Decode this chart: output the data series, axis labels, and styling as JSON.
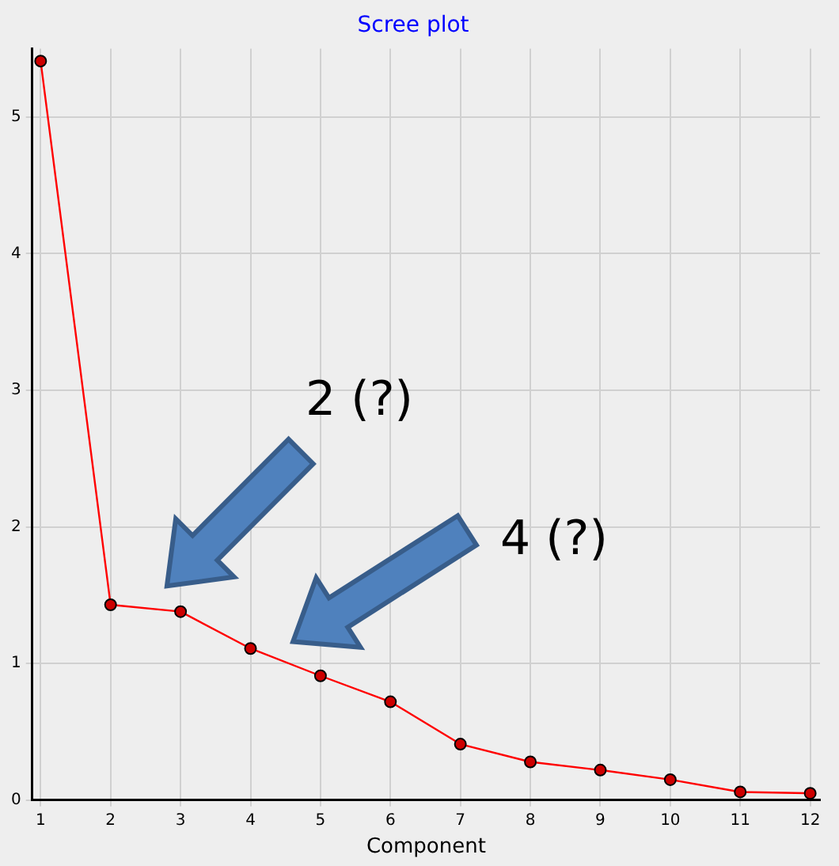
{
  "chart_data": {
    "type": "line",
    "title": "Scree plot",
    "xlabel": "Component",
    "x": [
      1,
      2,
      3,
      4,
      5,
      6,
      7,
      8,
      9,
      10,
      11,
      12
    ],
    "series": [
      {
        "color": "#ff0000",
        "values": [
          5.41,
          1.43,
          1.38,
          1.11,
          0.91,
          0.72,
          0.41,
          0.28,
          0.22,
          0.15,
          0.06,
          0.05
        ]
      }
    ],
    "xlim": [
      0.88,
      12.14
    ],
    "xticks": [
      1,
      2,
      3,
      4,
      5,
      6,
      7,
      8,
      9,
      10,
      11,
      12
    ],
    "ylim": [
      0,
      5.5
    ],
    "yticks": [
      0,
      1,
      2,
      3,
      4,
      5
    ],
    "grid": true,
    "legend": false,
    "marker": "circle",
    "line_style": "solid",
    "annotations": [
      "2 (?)",
      "4 (?)"
    ]
  }
}
